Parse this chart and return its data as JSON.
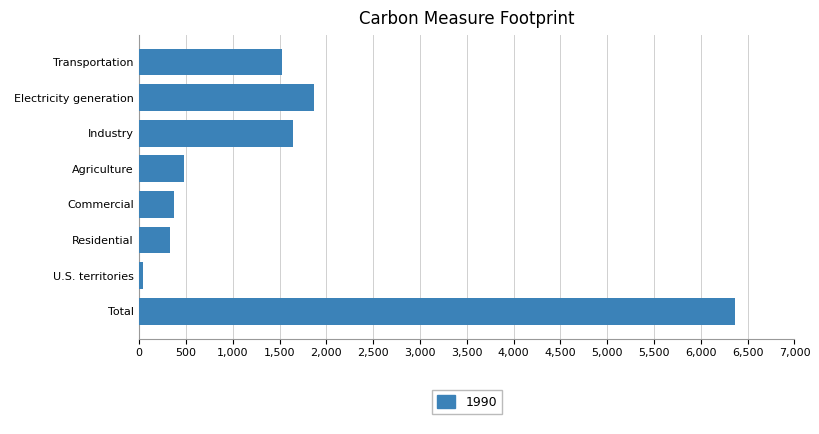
{
  "title": "Carbon Measure Footprint",
  "categories": [
    "Transportation",
    "Electricity generation",
    "Industry",
    "Agriculture",
    "Commercial",
    "Residential",
    "U.S. territories",
    "Total"
  ],
  "values": [
    1530,
    1870,
    1640,
    480,
    370,
    330,
    35,
    6360
  ],
  "bar_color": "#3b82b8",
  "legend_label": "1990",
  "xlim": [
    0,
    7000
  ],
  "xticks": [
    0,
    500,
    1000,
    1500,
    2000,
    2500,
    3000,
    3500,
    4000,
    4500,
    5000,
    5500,
    6000,
    6500,
    7000
  ],
  "background_color": "#ffffff",
  "title_fontsize": 12,
  "tick_fontsize": 8,
  "label_fontsize": 8
}
